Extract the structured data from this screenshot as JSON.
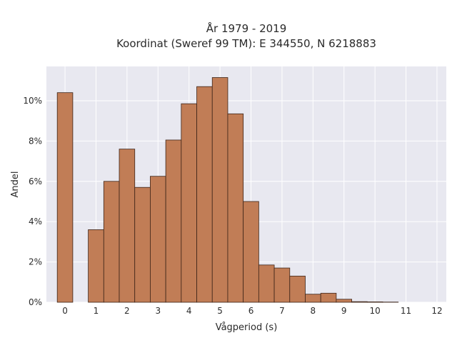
{
  "chart_data": {
    "type": "bar",
    "title": "År 1979 - 2019",
    "subtitle": "Koordinat (Sweref 99 TM): E 344550, N 6218883",
    "xlabel": "Vågperiod (s)",
    "ylabel": "Andel",
    "x_ticks": [
      "0",
      "1",
      "2",
      "3",
      "4",
      "5",
      "6",
      "7",
      "8",
      "9",
      "10",
      "11",
      "12"
    ],
    "y_ticks": [
      "0%",
      "2%",
      "4%",
      "6%",
      "8%",
      "10%"
    ],
    "xlim": [
      -0.6,
      12.3
    ],
    "ylim": [
      0,
      11.7
    ],
    "bin_width": 0.5,
    "bin_starts": [
      -0.25,
      0.75,
      1.25,
      1.75,
      2.25,
      2.75,
      3.25,
      3.75,
      4.25,
      4.75,
      5.25,
      5.75,
      6.25,
      6.75,
      7.25,
      7.75,
      8.25,
      8.75,
      9.25,
      9.75,
      10.25
    ],
    "values": [
      10.4,
      3.6,
      6.0,
      7.6,
      5.7,
      6.25,
      8.05,
      9.85,
      10.7,
      11.15,
      9.35,
      5.0,
      1.85,
      1.7,
      1.3,
      0.4,
      0.45,
      0.15,
      0.03,
      0.02,
      0.01
    ],
    "bar_color": "#c17d56",
    "bar_edge_color": "#3d2418",
    "plot_bg": "#e8e8f0",
    "grid": true,
    "legend": "none"
  }
}
